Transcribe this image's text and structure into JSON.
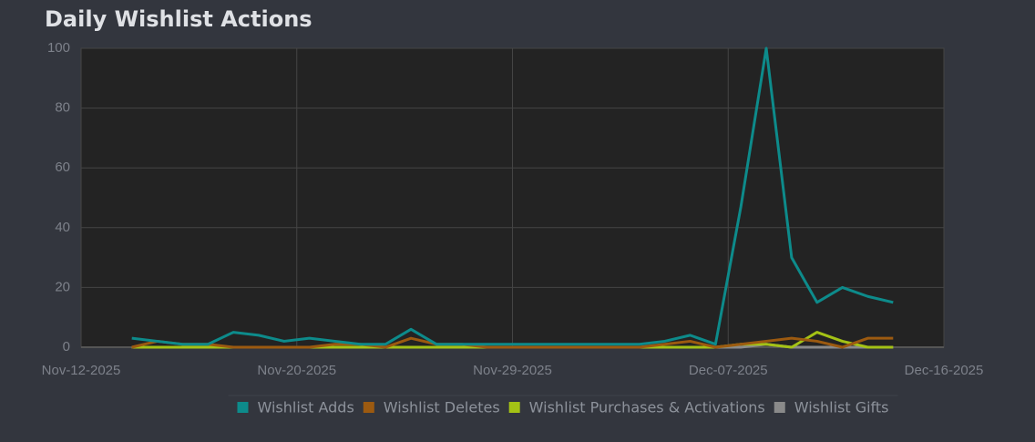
{
  "chart_data": {
    "type": "line",
    "title": "Daily Wishlist Actions",
    "x": [
      "2025-11-14",
      "2025-11-15",
      "2025-11-16",
      "2025-11-17",
      "2025-11-18",
      "2025-11-19",
      "2025-11-20",
      "2025-11-21",
      "2025-11-22",
      "2025-11-23",
      "2025-11-24",
      "2025-11-25",
      "2025-11-26",
      "2025-11-27",
      "2025-11-28",
      "2025-11-29",
      "2025-11-30",
      "2025-12-01",
      "2025-12-02",
      "2025-12-03",
      "2025-12-04",
      "2025-12-05",
      "2025-12-06",
      "2025-12-07",
      "2025-12-08",
      "2025-12-09",
      "2025-12-10",
      "2025-12-11",
      "2025-12-12",
      "2025-12-13",
      "2025-12-14"
    ],
    "series": [
      {
        "name": "Wishlist Adds",
        "color": "#0d8b8b",
        "values": [
          3,
          2,
          1,
          1,
          5,
          4,
          2,
          3,
          2,
          1,
          1,
          6,
          1,
          1,
          1,
          1,
          1,
          1,
          1,
          1,
          1,
          2,
          4,
          1,
          47,
          100,
          30,
          15,
          20,
          17,
          15
        ]
      },
      {
        "name": "Wishlist Deletes",
        "color": "#9c5a10",
        "values": [
          0,
          2,
          1,
          1,
          0,
          0,
          0,
          0,
          1,
          1,
          0,
          3,
          1,
          1,
          0,
          0,
          0,
          0,
          0,
          0,
          0,
          1,
          2,
          0,
          1,
          2,
          3,
          2,
          0,
          3,
          3
        ]
      },
      {
        "name": "Wishlist Purchases & Activations",
        "color": "#a4c215",
        "values": [
          0,
          0,
          0,
          0,
          0,
          0,
          0,
          0,
          0,
          0,
          0,
          0,
          0,
          0,
          0,
          0,
          0,
          0,
          0,
          0,
          0,
          0,
          0,
          0,
          1,
          1,
          0,
          5,
          2,
          0,
          0
        ]
      },
      {
        "name": "Wishlist Gifts",
        "color": "#8a8a8a",
        "values": [
          0,
          0,
          0,
          0,
          0,
          0,
          0,
          0,
          0,
          0,
          0,
          0,
          0,
          0,
          0,
          0,
          0,
          0,
          0,
          0,
          0,
          0,
          0,
          0,
          0,
          1,
          0,
          0,
          0,
          0,
          0
        ]
      }
    ],
    "xlim": [
      "2025-11-12T00:00Z",
      "2025-12-16T00:00Z"
    ],
    "xticks": [
      {
        "value": "2025-11-12T00:00Z",
        "label": "Nov-12-2025"
      },
      {
        "value": "2025-11-20T12:00Z",
        "label": "Nov-20-2025"
      },
      {
        "value": "2025-11-29T00:00Z",
        "label": "Nov-29-2025"
      },
      {
        "value": "2025-12-07T12:00Z",
        "label": "Dec-07-2025"
      },
      {
        "value": "2025-12-16T00:00Z",
        "label": "Dec-16-2025"
      }
    ],
    "ylim": [
      0,
      100
    ],
    "yticks": [
      0,
      20,
      40,
      60,
      80,
      100
    ],
    "grid": true,
    "legend": "bottom"
  }
}
